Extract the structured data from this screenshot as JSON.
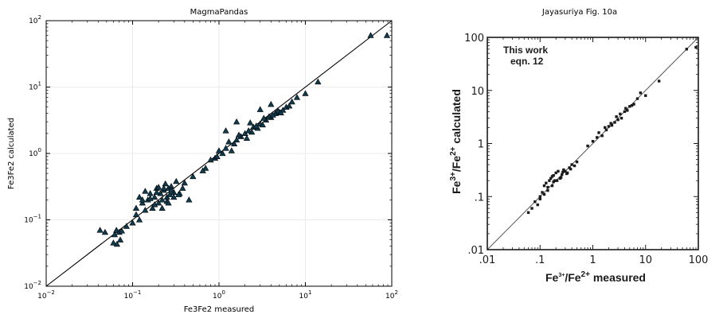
{
  "chart_data": [
    {
      "type": "scatter",
      "title": "MagmaPandas",
      "xlabel": "Fe3Fe2 measured",
      "ylabel": "Fe3Fe2 calculated",
      "xscale": "log",
      "yscale": "log",
      "xlim": [
        0.01,
        100
      ],
      "ylim": [
        0.01,
        100
      ],
      "tick_base": "10",
      "tick_exponents": [
        "−2",
        "−1",
        "0",
        "1",
        "2"
      ],
      "grid": true,
      "one_to_one_line": true,
      "marker": "triangle",
      "marker_color": "#0f3b4f",
      "series": [
        {
          "x": [
            0.042,
            0.048,
            0.06,
            0.062,
            0.065,
            0.066,
            0.07,
            0.072,
            0.075,
            0.085,
            0.1,
            0.11,
            0.12,
            0.13,
            0.14,
            0.15,
            0.16,
            0.17,
            0.18,
            0.19,
            0.2,
            0.21,
            0.22,
            0.23,
            0.24,
            0.25,
            0.26,
            0.27,
            0.28,
            0.3,
            0.32,
            0.35,
            0.38,
            0.4,
            0.45,
            0.12,
            0.14,
            0.18,
            0.22,
            0.25,
            0.3,
            0.2,
            0.16,
            0.26,
            0.34,
            0.11,
            0.13,
            0.19,
            0.23,
            0.28,
            0.5,
            0.7,
            0.8,
            0.9,
            1.0,
            1.1,
            1.2,
            1.3,
            1.5,
            1.6,
            1.8,
            2.0,
            2.2,
            2.5,
            2.8,
            3.0,
            3.2,
            3.5,
            4.0,
            4.5,
            5.0,
            5.5,
            6.0,
            7.0,
            8.0,
            10.0,
            14.0,
            1.4,
            1.7,
            2.1,
            2.4,
            2.7,
            3.3,
            3.8,
            4.2,
            4.8,
            5.2,
            6.5,
            1.2,
            1.6,
            2.3,
            3.0,
            4.0,
            0.65,
            0.95,
            57.0,
            88.0
          ],
          "y": [
            0.07,
            0.065,
            0.045,
            0.06,
            0.07,
            0.043,
            0.065,
            0.05,
            0.068,
            0.08,
            0.09,
            0.12,
            0.1,
            0.18,
            0.14,
            0.2,
            0.25,
            0.15,
            0.22,
            0.3,
            0.18,
            0.25,
            0.2,
            0.28,
            0.35,
            0.22,
            0.3,
            0.24,
            0.32,
            0.26,
            0.38,
            0.25,
            0.3,
            0.36,
            0.2,
            0.22,
            0.27,
            0.17,
            0.15,
            0.19,
            0.22,
            0.31,
            0.21,
            0.18,
            0.24,
            0.15,
            0.2,
            0.26,
            0.3,
            0.28,
            0.45,
            0.6,
            0.8,
            0.85,
            1.1,
            1.0,
            1.2,
            1.5,
            1.4,
            1.6,
            1.8,
            2.0,
            2.2,
            2.5,
            2.4,
            2.8,
            2.7,
            3.2,
            3.5,
            4.0,
            4.2,
            4.5,
            5.0,
            6.0,
            7.0,
            8.0,
            12.0,
            1.1,
            1.9,
            1.7,
            2.1,
            2.6,
            3.4,
            3.6,
            3.8,
            4.4,
            4.1,
            5.2,
            2.2,
            3.0,
            2.9,
            4.6,
            5.5,
            0.55,
            0.9,
            60.0,
            60.0
          ]
        }
      ]
    },
    {
      "type": "scatter",
      "title": "Jayasuriya Fig. 10a",
      "xscale": "log",
      "yscale": "log",
      "xlim": [
        0.01,
        100
      ],
      "ylim": [
        0.01,
        100
      ],
      "tick_labels": [
        ".01",
        ".1",
        "1",
        "10",
        "100"
      ],
      "xlabel": {
        "a": "Fe",
        "a_sup": "3+",
        "b": "/Fe",
        "b_sup": "2+",
        "c": " measured"
      },
      "ylabel": {
        "a": "Fe",
        "a_sup": "3+",
        "b": "/Fe",
        "b_sup": "2+",
        "c": " calculated"
      },
      "annotation": [
        "This work",
        "eqn. 12"
      ],
      "one_to_one_line": true,
      "marker": "square",
      "marker_color": "#1a1a1a",
      "series": [
        {
          "x": [
            0.06,
            0.07,
            0.08,
            0.09,
            0.1,
            0.11,
            0.12,
            0.13,
            0.14,
            0.15,
            0.16,
            0.17,
            0.18,
            0.19,
            0.2,
            0.22,
            0.24,
            0.26,
            0.28,
            0.3,
            0.33,
            0.36,
            0.4,
            0.45,
            0.5,
            0.1,
            0.14,
            0.18,
            0.25,
            0.32,
            0.38,
            0.17,
            0.21,
            0.27,
            0.12,
            0.8,
            1.0,
            1.2,
            1.5,
            1.8,
            2.0,
            2.3,
            2.6,
            3.0,
            3.5,
            4.0,
            4.5,
            5.0,
            6.0,
            7.0,
            8.0,
            10.0,
            1.3,
            1.7,
            2.2,
            2.8,
            3.3,
            4.2,
            5.5,
            18.0,
            60.0,
            90.0
          ],
          "y": [
            0.05,
            0.06,
            0.08,
            0.07,
            0.1,
            0.12,
            0.11,
            0.18,
            0.15,
            0.2,
            0.22,
            0.16,
            0.25,
            0.2,
            0.28,
            0.3,
            0.22,
            0.26,
            0.32,
            0.3,
            0.28,
            0.35,
            0.4,
            0.38,
            0.45,
            0.09,
            0.13,
            0.19,
            0.23,
            0.27,
            0.33,
            0.24,
            0.2,
            0.29,
            0.16,
            0.9,
            1.1,
            1.3,
            1.4,
            1.8,
            2.1,
            2.2,
            2.5,
            2.8,
            3.0,
            4.0,
            4.2,
            5.0,
            5.5,
            7.0,
            9.0,
            8.0,
            1.6,
            2.0,
            2.4,
            3.2,
            3.6,
            4.6,
            5.2,
            15.0,
            60.0,
            65.0
          ]
        }
      ]
    }
  ]
}
